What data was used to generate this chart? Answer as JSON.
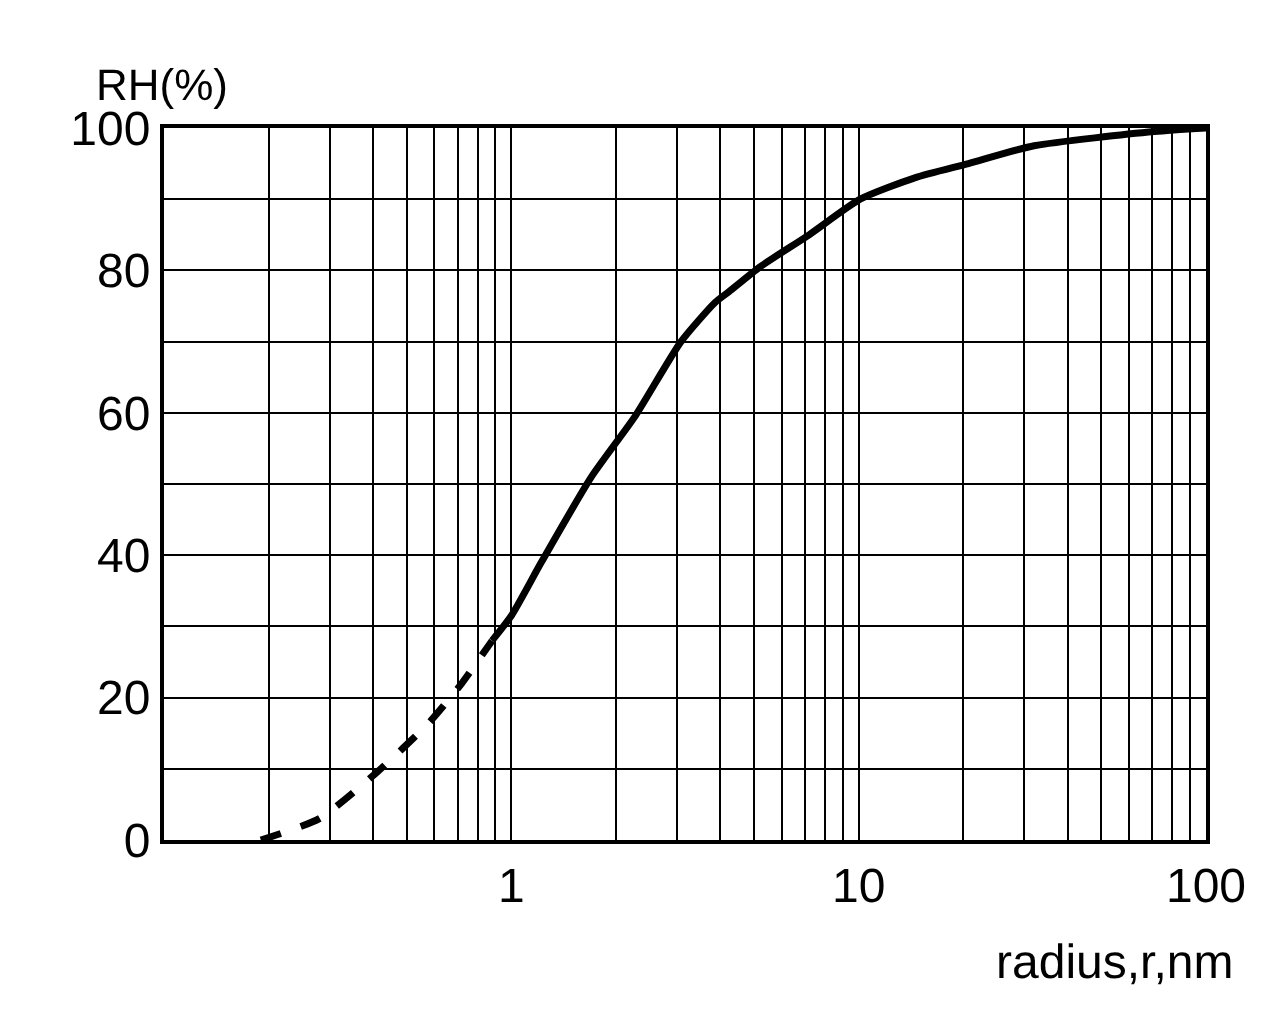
{
  "chart_data": {
    "type": "line",
    "xlabel": "radius,r,nm",
    "ylabel": "RH(%)",
    "log": "x",
    "grid": true,
    "marker": "none",
    "series": [
      {
        "color": "#000000",
        "line_style": "dashed",
        "x": [
          0.19,
          0.28,
          0.41,
          0.58,
          0.72,
          0.88
        ],
        "values": [
          0,
          3,
          9.5,
          16.5,
          22,
          28
        ]
      },
      {
        "color": "#000000",
        "line_style": "solid",
        "x": [
          0.88,
          1.0,
          1.22,
          1.7,
          2.27,
          3.08,
          3.86,
          4.23,
          5.2,
          7.2,
          10.1,
          14.5,
          20.7,
          32,
          71,
          100
        ],
        "values": [
          28,
          31.5,
          39,
          51,
          59.5,
          70,
          75.5,
          77,
          80.5,
          85,
          90,
          93,
          95,
          97.5,
          99.5,
          100
        ]
      }
    ],
    "xlim": [
      0.1,
      100
    ],
    "xticks": [
      {
        "value": 0.2,
        "label": null
      },
      {
        "value": 0.3,
        "label": null
      },
      {
        "value": 0.4,
        "label": null
      },
      {
        "value": 0.5,
        "label": null
      },
      {
        "value": 0.6,
        "label": null
      },
      {
        "value": 0.7,
        "label": null
      },
      {
        "value": 0.8,
        "label": null
      },
      {
        "value": 0.9,
        "label": null
      },
      1,
      {
        "value": 2,
        "label": null
      },
      {
        "value": 3,
        "label": null
      },
      {
        "value": 4,
        "label": null
      },
      {
        "value": 5,
        "label": null
      },
      {
        "value": 6,
        "label": null
      },
      {
        "value": 7,
        "label": null
      },
      {
        "value": 8,
        "label": null
      },
      {
        "value": 9,
        "label": null
      },
      10,
      {
        "value": 20,
        "label": null
      },
      {
        "value": 30,
        "label": null
      },
      {
        "value": 40,
        "label": null
      },
      {
        "value": 50,
        "label": null
      },
      {
        "value": 60,
        "label": null
      },
      {
        "value": 70,
        "label": null
      },
      {
        "value": 80,
        "label": null
      },
      {
        "value": 90,
        "label": null
      },
      100
    ],
    "ylim": [
      0,
      100
    ],
    "yticks": [
      0,
      {
        "value": 10,
        "label": null
      },
      20,
      {
        "value": 30,
        "label": null
      },
      40,
      {
        "value": 50,
        "label": null
      },
      60,
      {
        "value": 70,
        "label": null
      },
      80,
      {
        "value": 90,
        "label": null
      },
      100
    ]
  }
}
